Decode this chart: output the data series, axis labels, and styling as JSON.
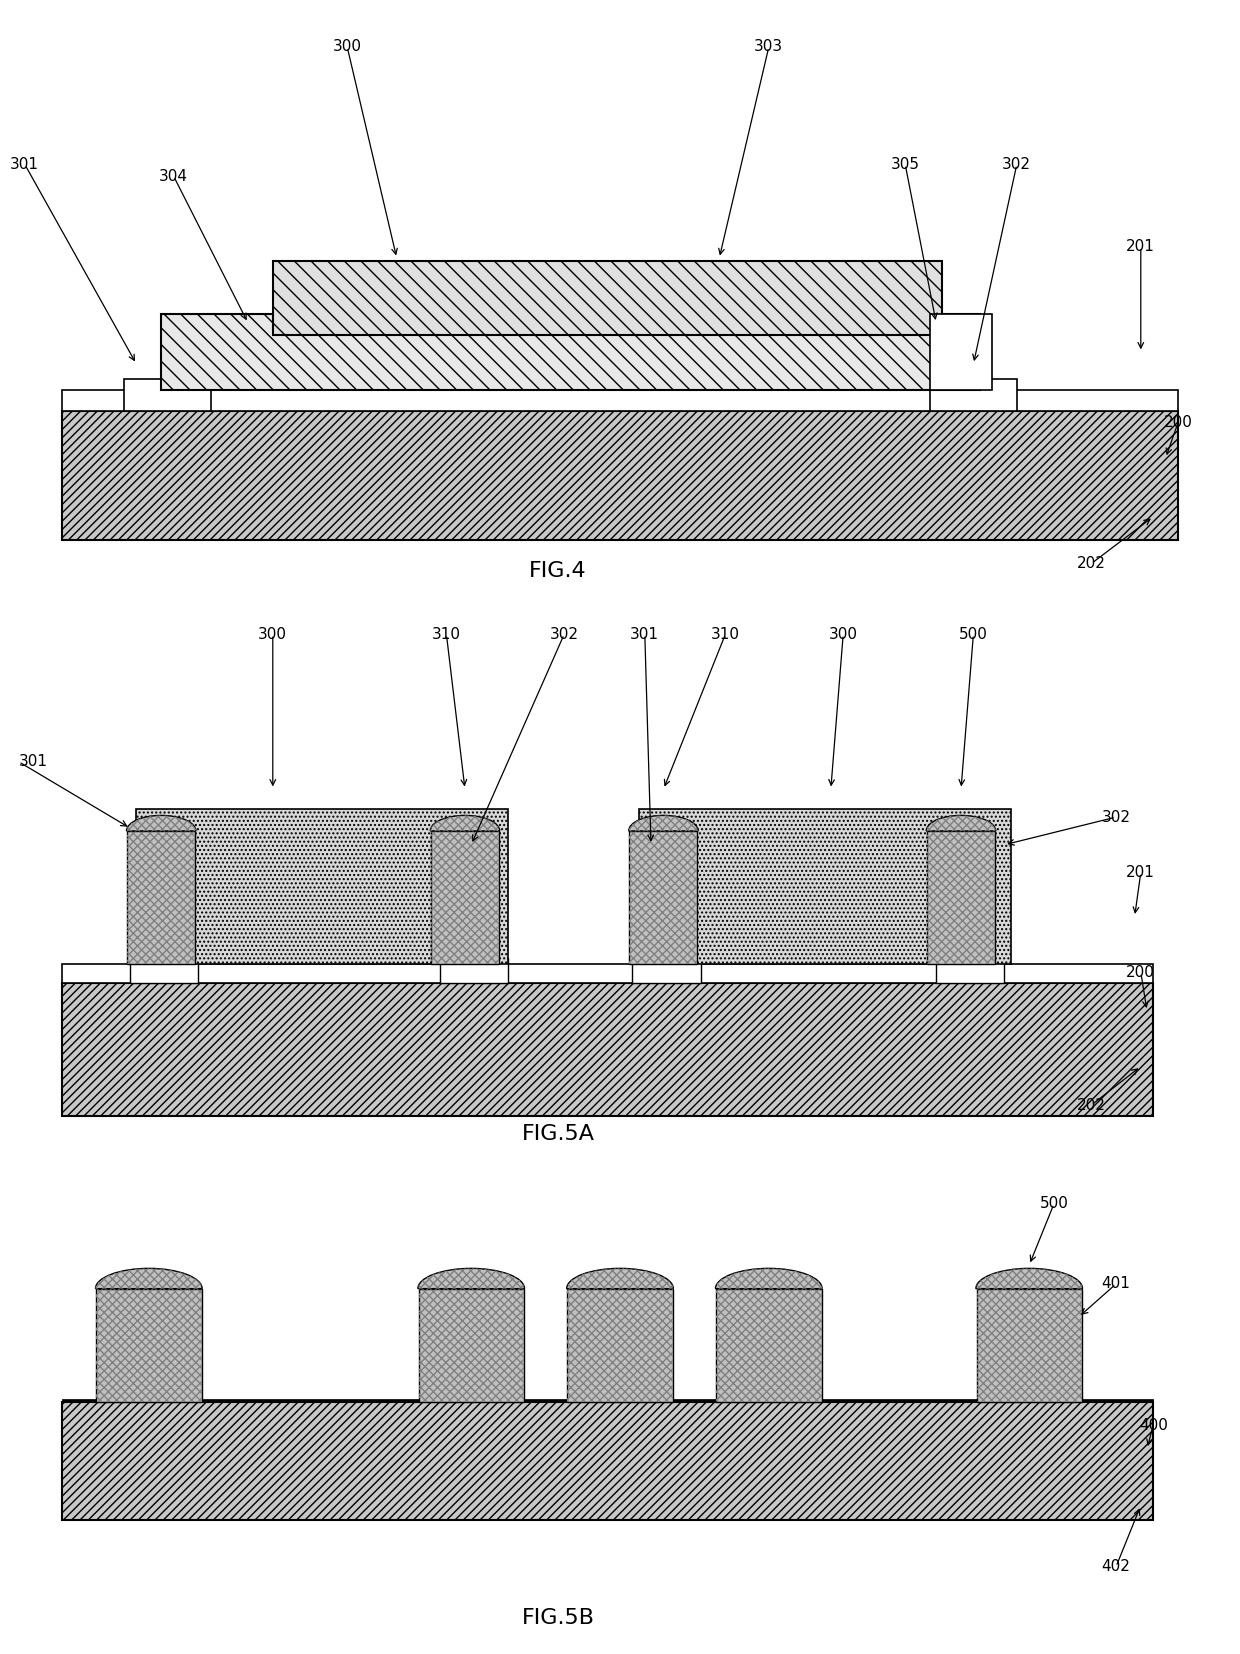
{
  "background": "#ffffff",
  "line_color": "#000000",
  "hatch_diagonal": "////",
  "hatch_backdiag": "\\\\",
  "hatch_dot": "....",
  "hatch_cross": "xxxx",
  "substrate_fc": "#c8c8c8",
  "component_fc": "#e8e8e8",
  "bump_fc": "#b8b8b8",
  "pad_fc": "#ffffff",
  "fig4_title": "FIG.4",
  "fig5a_title": "FIG.5A",
  "fig5b_title": "FIG.5B"
}
